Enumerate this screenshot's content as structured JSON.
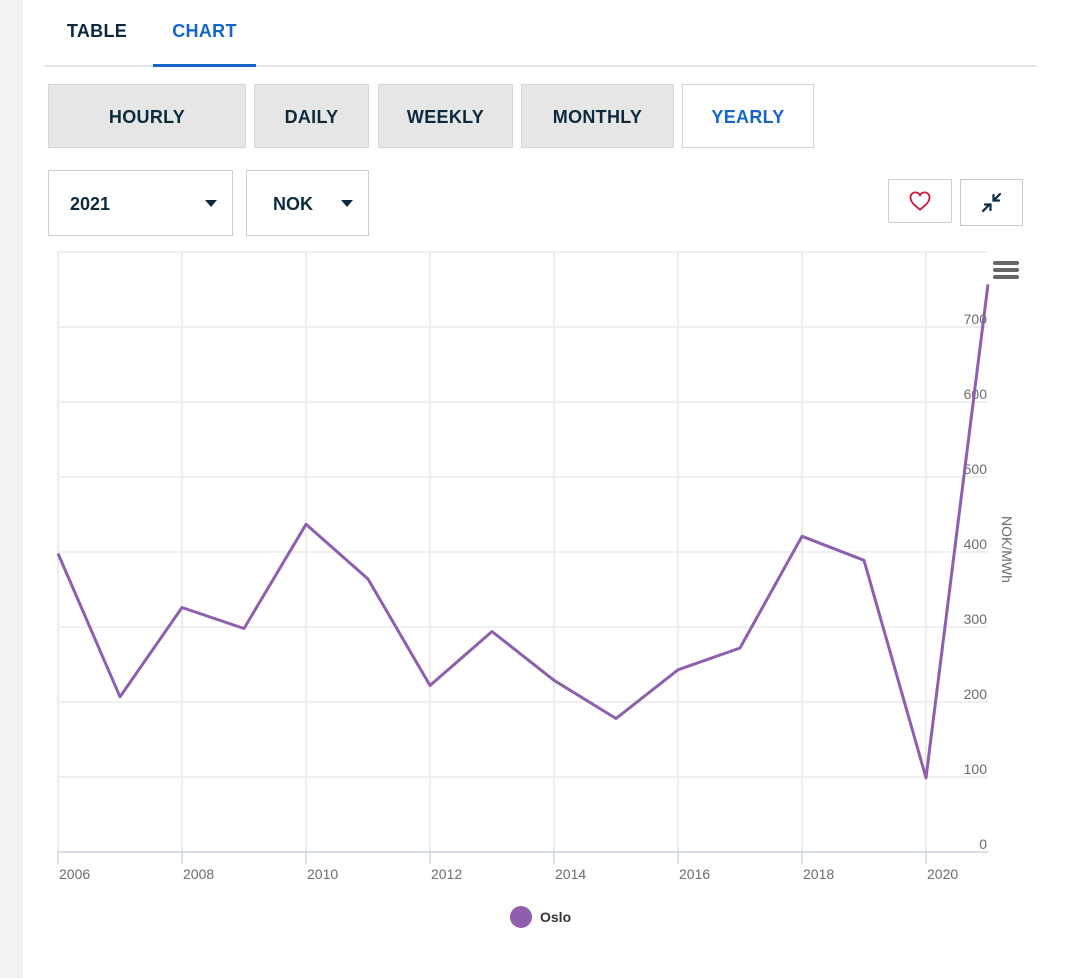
{
  "tabs": {
    "table_label": "TABLE",
    "chart_label": "CHART",
    "active": "CHART"
  },
  "resolution": {
    "options": [
      "HOURLY",
      "DAILY",
      "WEEKLY",
      "MONTHLY",
      "YEARLY"
    ],
    "active": "YEARLY"
  },
  "filters": {
    "year": "2021",
    "currency": "NOK"
  },
  "colors": {
    "series": "#8f5fae",
    "accent": "#1566c8",
    "favorite": "#c8193c",
    "text": "#0b2a3f"
  },
  "icons": {
    "favorite": "heart-icon",
    "collapse": "collapse-arrows-icon",
    "menu": "hamburger-menu-icon"
  },
  "chart_data": {
    "type": "line",
    "ylabel": "NOK/MWh",
    "ylim": [
      0,
      750
    ],
    "yticks": [
      0,
      100,
      200,
      300,
      400,
      500,
      600,
      700
    ],
    "y_axis_side": "right",
    "xticks": [
      "2006",
      "2008",
      "2010",
      "2012",
      "2014",
      "2016",
      "2018",
      "2020"
    ],
    "x": [
      2006,
      2007,
      2008,
      2009,
      2010,
      2011,
      2012,
      2013,
      2014,
      2015,
      2016,
      2017,
      2018,
      2019,
      2020,
      2021
    ],
    "grid": true,
    "legend_position": "bottom-center",
    "series": [
      {
        "name": "Oslo",
        "values": [
          398,
          207,
          326,
          298,
          437,
          364,
          222,
          294,
          229,
          178,
          243,
          272,
          421,
          389,
          99,
          757
        ]
      }
    ]
  }
}
